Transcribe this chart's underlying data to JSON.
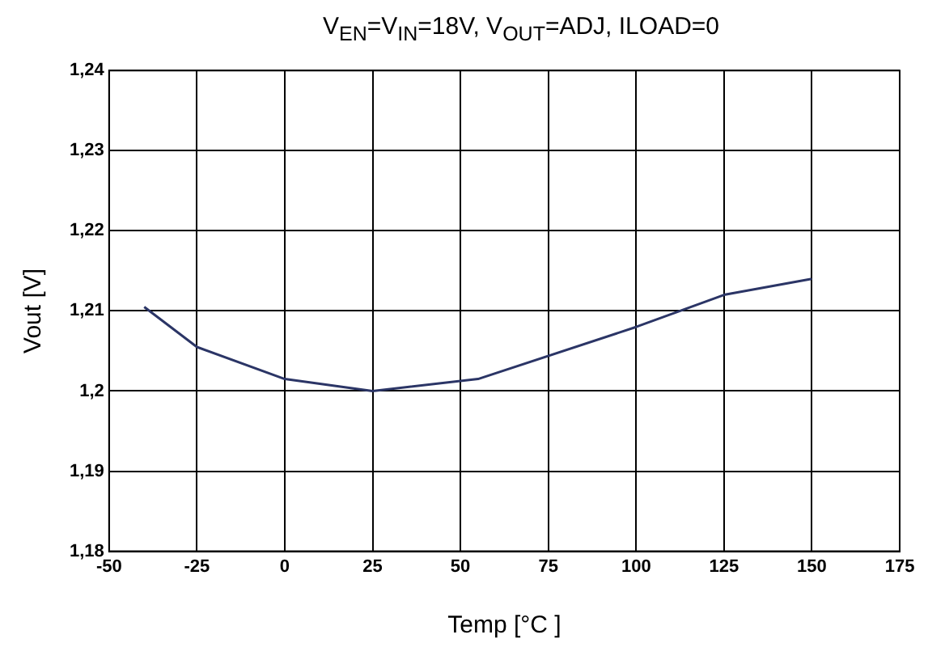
{
  "chart_data": {
    "type": "line",
    "title": "V$_{EN}$=V$_{IN}$=18V, V$_{OUT}$=ADJ, ILOAD=0",
    "xlabel": "Temp [°C ]",
    "ylabel": "Vout [V]",
    "x": [
      -40,
      -25,
      0,
      25,
      55,
      100,
      125,
      150
    ],
    "series": [
      {
        "color": "#2b3566",
        "values": [
          1.2105,
          1.2055,
          1.2015,
          1.2,
          1.2015,
          1.208,
          1.212,
          1.214
        ]
      }
    ],
    "xlim": [
      -50,
      175
    ],
    "xticks": [
      -50,
      -25,
      0,
      25,
      50,
      75,
      100,
      125,
      150,
      175
    ],
    "ylim": [
      1.18,
      1.24
    ],
    "yticks": [
      {
        "value": 1.18,
        "label": "1,18"
      },
      {
        "value": 1.19,
        "label": "1,19"
      },
      {
        "value": 1.2,
        "label": "1,2"
      },
      {
        "value": 1.21,
        "label": "1,21"
      },
      {
        "value": 1.22,
        "label": "1,22"
      },
      {
        "value": 1.23,
        "label": "1,23"
      },
      {
        "value": 1.24,
        "label": "1,24"
      }
    ],
    "grid": true,
    "legend": false,
    "marker": "none",
    "line_style": "solid"
  }
}
